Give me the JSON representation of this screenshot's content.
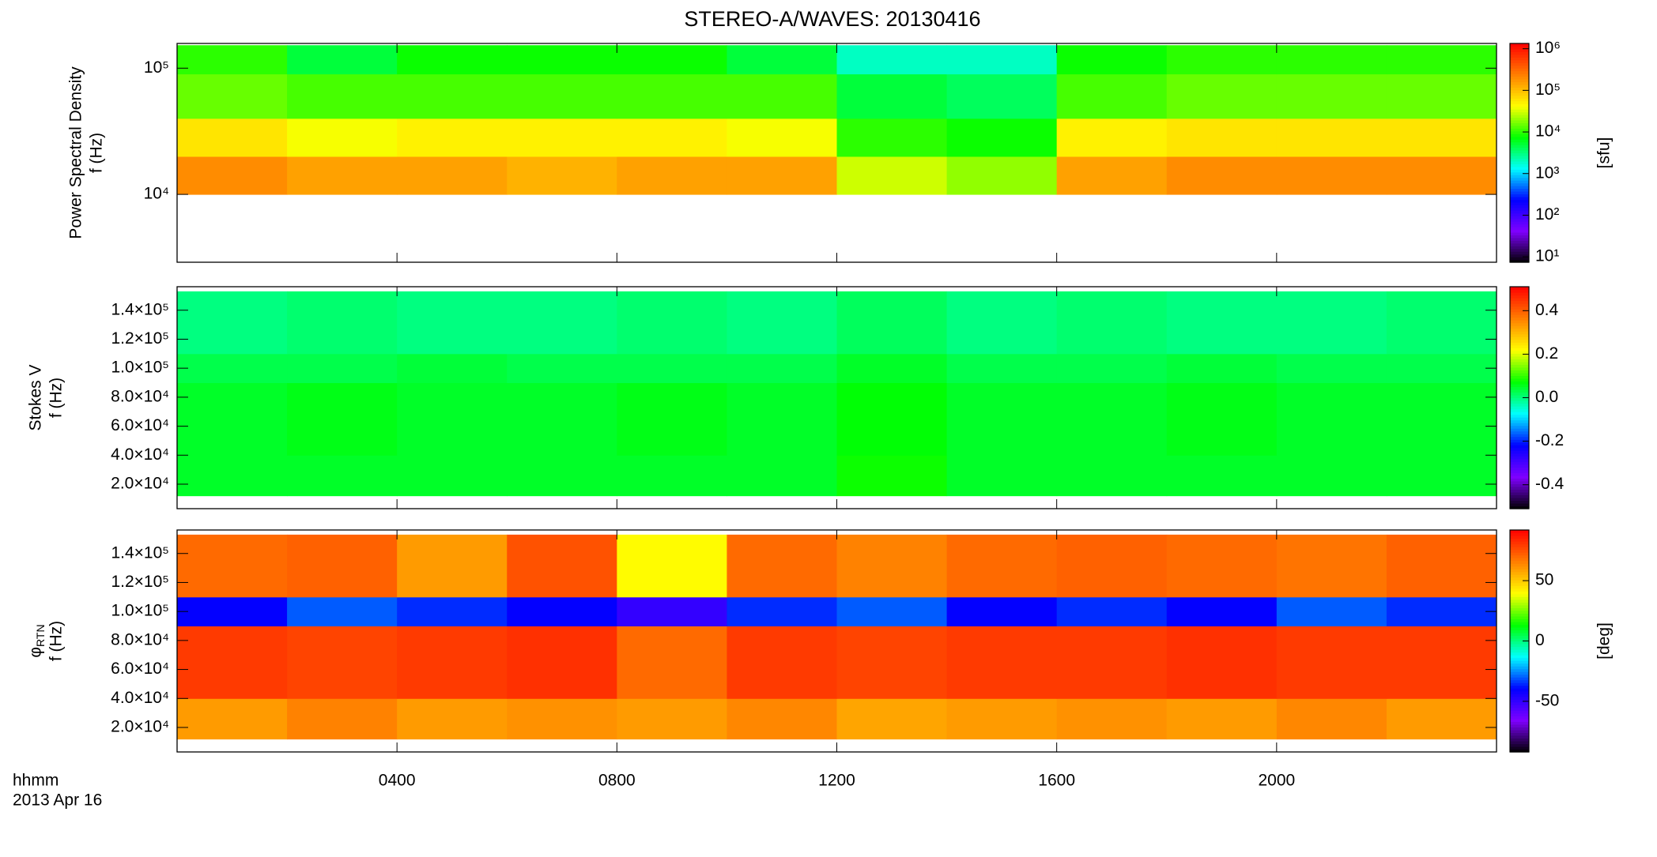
{
  "title": "STEREO-A/WAVES: 20130416",
  "x_label": "hhmm",
  "date": "2013 Apr 16",
  "xlim": [
    0,
    24
  ],
  "xticks": [
    {
      "value": 4,
      "label": "0400"
    },
    {
      "value": 8,
      "label": "0800"
    },
    {
      "value": 12,
      "label": "1200"
    },
    {
      "value": 16,
      "label": "1600"
    },
    {
      "value": 20,
      "label": "2000"
    }
  ],
  "colormap": [
    "#000000",
    "#7f00ff",
    "#0000ff",
    "#00ffff",
    "#00ff00",
    "#ffff00",
    "#ff7f00",
    "#ff0000"
  ],
  "chart_data": [
    {
      "type": "spectrogram",
      "ylabel": "Power Spectral Density",
      "ylabel2": "f (Hz)",
      "ylog": true,
      "ylim": [
        2900,
        157000
      ],
      "yticks": [
        {
          "value": 10000,
          "label": "10⁴"
        },
        {
          "value": 100000,
          "label": "10⁵"
        }
      ],
      "x_bins": [
        0,
        2,
        4,
        6,
        8,
        10,
        12,
        14,
        16,
        18,
        20,
        22,
        24
      ],
      "y_bins": [
        10000,
        20000,
        40000,
        90000,
        152000
      ],
      "values": [
        [
          200000,
          150000,
          150000,
          120000,
          150000,
          150000,
          30000,
          20000,
          150000,
          200000,
          200000,
          200000
        ],
        [
          60000,
          40000,
          50000,
          50000,
          50000,
          40000,
          10000,
          8000,
          50000,
          60000,
          60000,
          60000
        ],
        [
          15000,
          12000,
          12000,
          12000,
          12000,
          12000,
          5000,
          4000,
          12000,
          15000,
          15000,
          15000
        ],
        [
          10000,
          5000,
          8000,
          8000,
          8000,
          5000,
          2000,
          2000,
          8000,
          10000,
          10000,
          10000
        ]
      ],
      "colorbar": {
        "label": "[sfu]",
        "log": true,
        "clim": [
          7.4,
          1340000
        ],
        "ticks": [
          {
            "value": 10,
            "label": "10¹"
          },
          {
            "value": 100,
            "label": "10²"
          },
          {
            "value": 1000,
            "label": "10³"
          },
          {
            "value": 10000,
            "label": "10⁴"
          },
          {
            "value": 100000,
            "label": "10⁵"
          },
          {
            "value": 1000000,
            "label": "10⁶"
          }
        ]
      }
    },
    {
      "type": "spectrogram",
      "ylabel": "Stokes V",
      "ylabel2": "f (Hz)",
      "ylog": false,
      "ylim": [
        3100,
        156200
      ],
      "yticks": [
        {
          "value": 20000,
          "label": "2.0×10⁴"
        },
        {
          "value": 40000,
          "label": "4.0×10⁴"
        },
        {
          "value": 60000,
          "label": "6.0×10⁴"
        },
        {
          "value": 80000,
          "label": "8.0×10⁴"
        },
        {
          "value": 100000,
          "label": "1.0×10⁵"
        },
        {
          "value": 120000,
          "label": "1.2×10⁵"
        },
        {
          "value": 140000,
          "label": "1.4×10⁵"
        }
      ],
      "x_bins": [
        0,
        2,
        4,
        6,
        8,
        10,
        12,
        14,
        16,
        18,
        20,
        22,
        24
      ],
      "y_bins": [
        12000,
        40000,
        90000,
        110000,
        153000
      ],
      "values": [
        [
          0.05,
          0.05,
          0.05,
          0.05,
          0.05,
          0.05,
          0.08,
          0.05,
          0.05,
          0.05,
          0.05,
          0.05
        ],
        [
          0.05,
          0.06,
          0.05,
          0.05,
          0.06,
          0.05,
          0.07,
          0.05,
          0.05,
          0.06,
          0.05,
          0.05
        ],
        [
          0.03,
          0.03,
          0.04,
          0.03,
          0.03,
          0.03,
          0.05,
          0.03,
          0.03,
          0.04,
          0.03,
          0.03
        ],
        [
          0.0,
          0.01,
          0.0,
          0.0,
          0.01,
          0.0,
          0.02,
          0.0,
          0.01,
          0.0,
          0.0,
          0.01
        ]
      ],
      "colorbar": {
        "label": "",
        "log": false,
        "clim": [
          -0.51,
          0.51
        ],
        "ticks": [
          -0.4,
          -0.2,
          {
            "value": 0,
            "label": "0.0"
          },
          0.2,
          0.4
        ]
      }
    },
    {
      "type": "spectrogram",
      "ylabel": "φ",
      "ylabel_sub": "RTN",
      "ylabel2": "f (Hz)",
      "ylog": false,
      "ylim": [
        3100,
        156200
      ],
      "yticks": [
        {
          "value": 20000,
          "label": "2.0×10⁴"
        },
        {
          "value": 40000,
          "label": "4.0×10⁴"
        },
        {
          "value": 60000,
          "label": "6.0×10⁴"
        },
        {
          "value": 80000,
          "label": "8.0×10⁴"
        },
        {
          "value": 100000,
          "label": "1.0×10⁵"
        },
        {
          "value": 120000,
          "label": "1.2×10⁵"
        },
        {
          "value": 140000,
          "label": "1.4×10⁵"
        }
      ],
      "x_bins": [
        0,
        2,
        4,
        6,
        8,
        10,
        12,
        14,
        16,
        18,
        20,
        22,
        24
      ],
      "y_bins": [
        12000,
        40000,
        90000,
        110000,
        153000
      ],
      "values": [
        [
          60,
          65,
          60,
          62,
          60,
          64,
          58,
          60,
          62,
          60,
          64,
          60
        ],
        [
          80,
          78,
          80,
          82,
          70,
          80,
          78,
          80,
          80,
          82,
          80,
          80
        ],
        [
          -40,
          -30,
          -35,
          -40,
          -50,
          -35,
          -30,
          -40,
          -35,
          -40,
          -30,
          -35
        ],
        [
          70,
          72,
          60,
          75,
          40,
          70,
          65,
          70,
          72,
          70,
          68,
          72
        ]
      ],
      "colorbar": {
        "label": "[deg]",
        "log": false,
        "clim": [
          -92,
          92
        ],
        "ticks": [
          -50,
          0,
          50
        ]
      }
    }
  ]
}
